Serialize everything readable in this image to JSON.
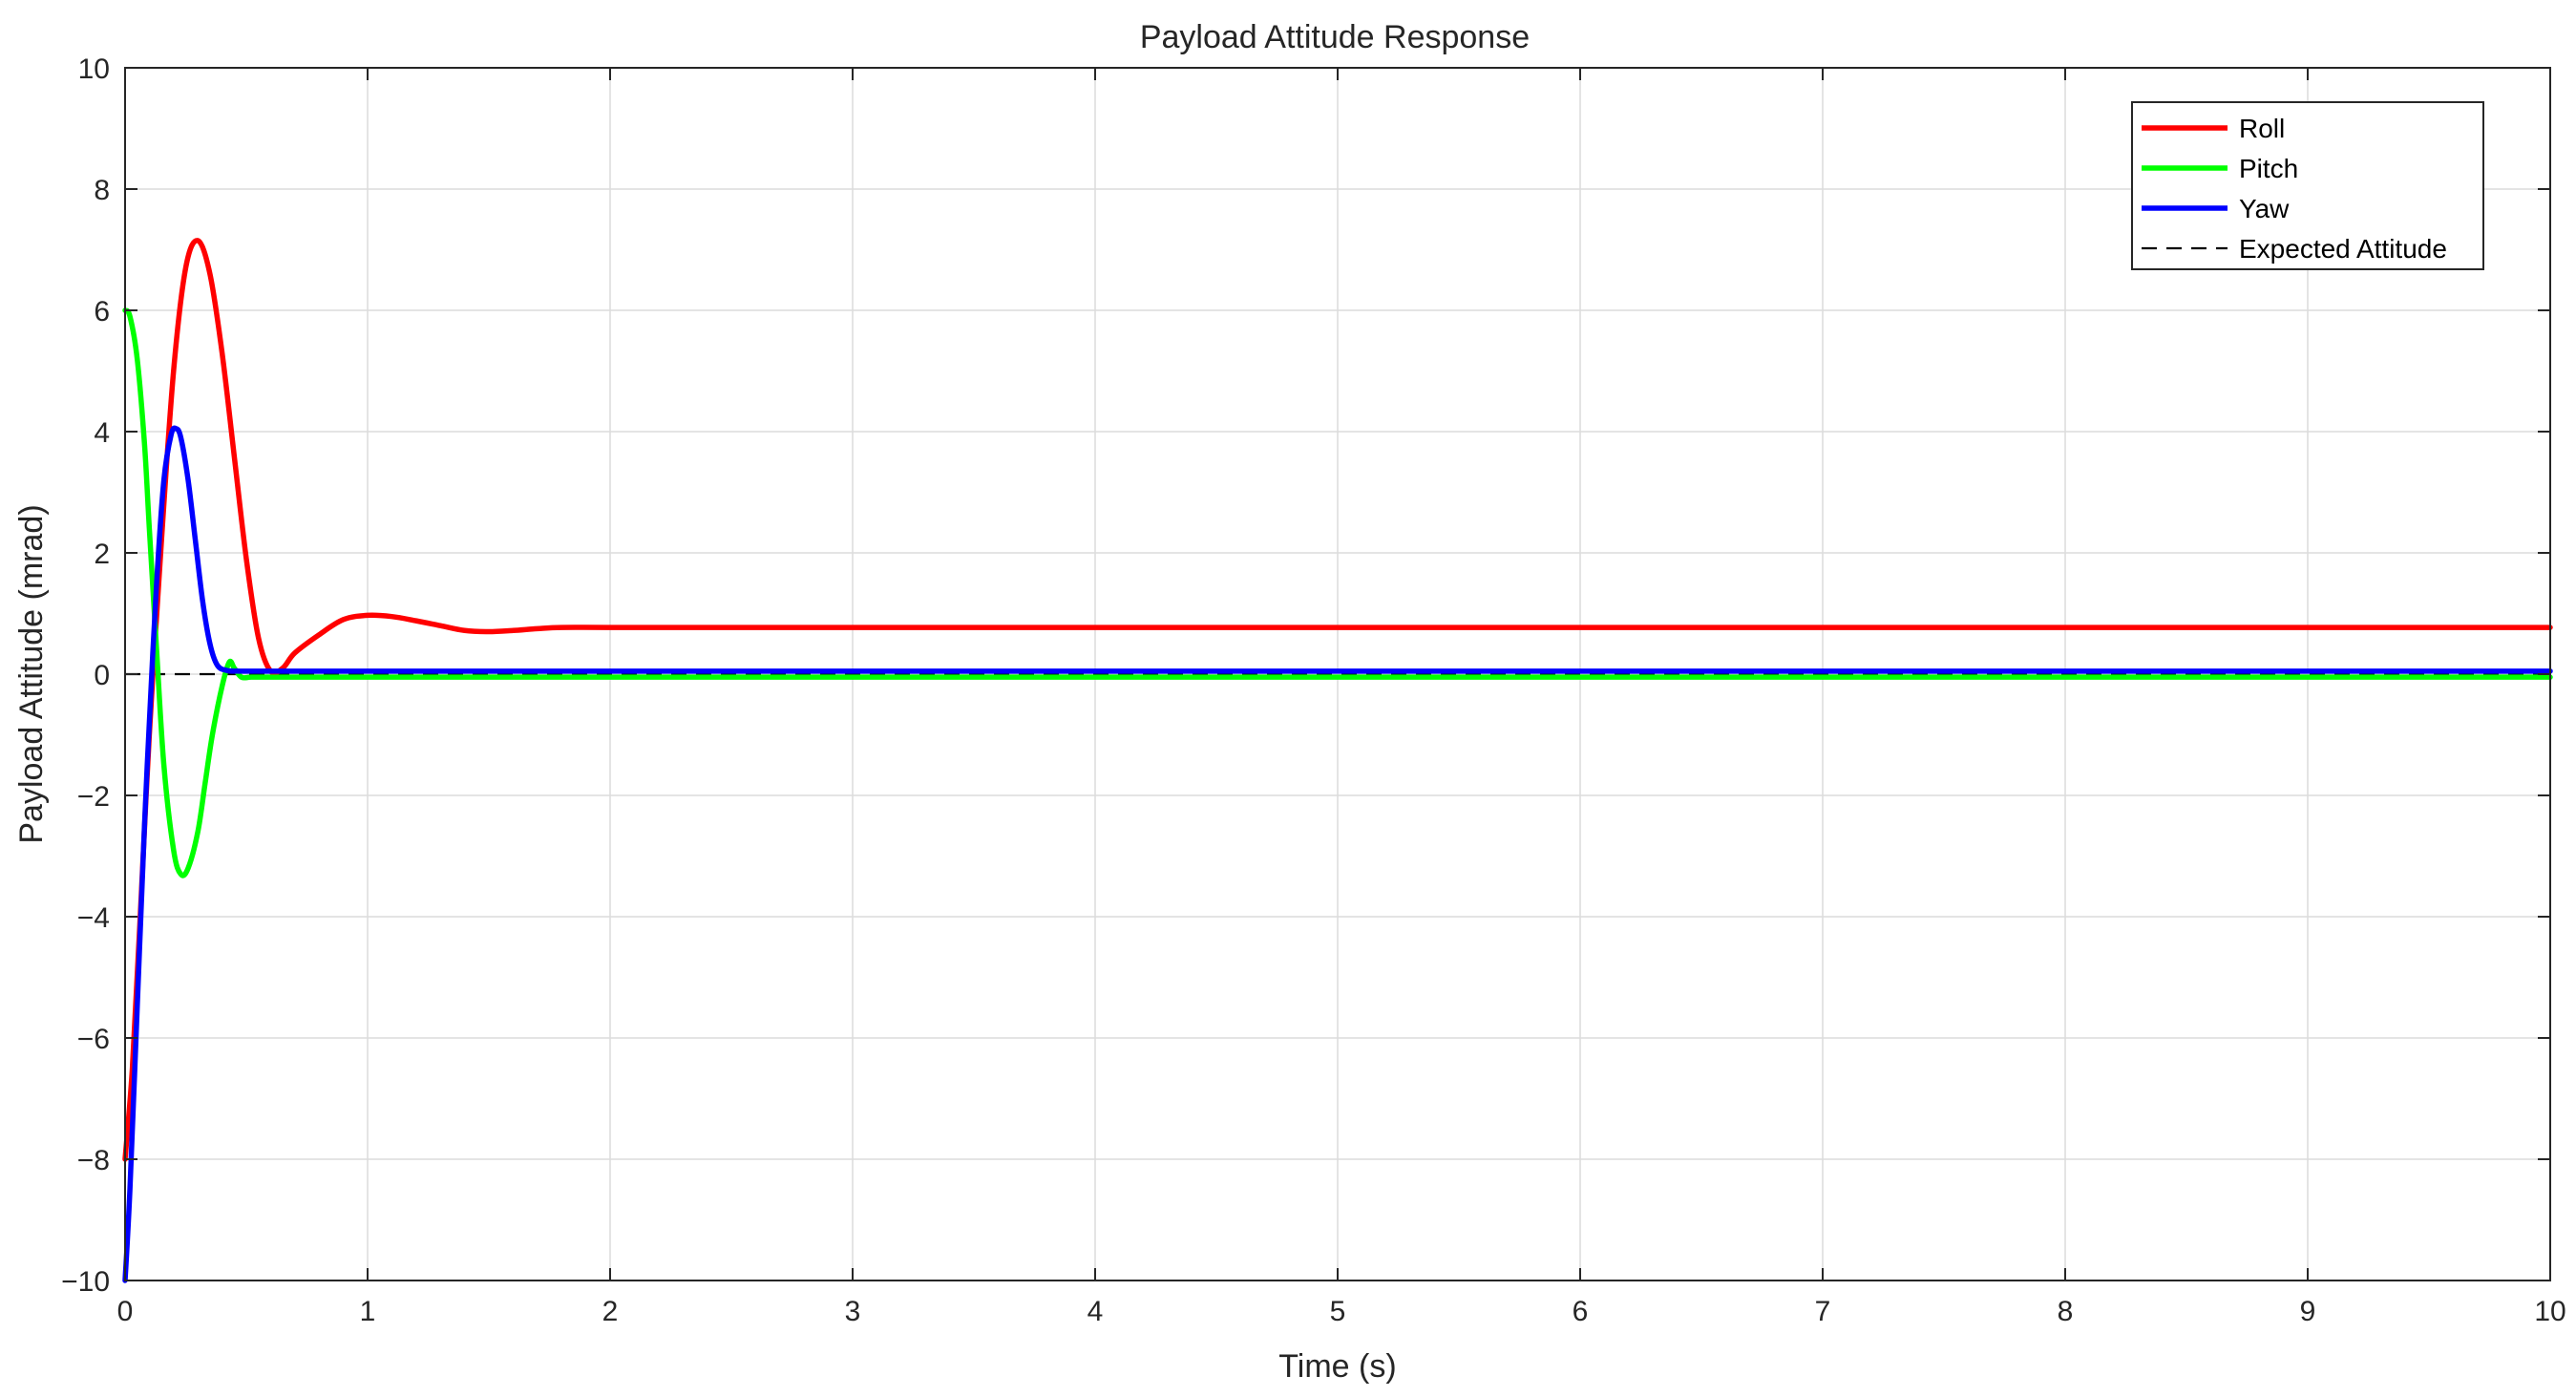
{
  "chart_data": {
    "type": "line",
    "title": "Payload Attitude Response",
    "xlabel": "Time (s)",
    "ylabel": "Payload Attitude (mrad)",
    "xlim": [
      0,
      10
    ],
    "ylim": [
      -10,
      10
    ],
    "xticks": [
      0,
      1,
      2,
      3,
      4,
      5,
      6,
      7,
      8,
      9,
      10
    ],
    "yticks": [
      -10,
      -8,
      -6,
      -4,
      -2,
      0,
      2,
      4,
      6,
      8,
      10
    ],
    "xtick_labels": [
      "0",
      "1",
      "2",
      "3",
      "4",
      "5",
      "6",
      "7",
      "8",
      "9",
      "10"
    ],
    "ytick_labels": [
      "−10",
      "−8",
      "−6",
      "−4",
      "−2",
      "0",
      "2",
      "4",
      "6",
      "8",
      "10"
    ],
    "grid": true,
    "legend_position": "top-right",
    "series": [
      {
        "name": "Roll",
        "color": "#ff0000",
        "style": "solid",
        "x": [
          0,
          0.03,
          0.06,
          0.1,
          0.15,
          0.2,
          0.25,
          0.3,
          0.35,
          0.4,
          0.45,
          0.5,
          0.55,
          0.6,
          0.65,
          0.7,
          0.8,
          0.9,
          1.0,
          1.1,
          1.2,
          1.3,
          1.4,
          1.5,
          1.6,
          1.7,
          1.8,
          2.0,
          2.5,
          3,
          4,
          5,
          6,
          7,
          8,
          9,
          10
        ],
        "y": [
          -8,
          -6.5,
          -4.2,
          -1.0,
          2.2,
          5.0,
          6.7,
          7.15,
          6.6,
          5.3,
          3.6,
          1.9,
          0.6,
          0.05,
          0.1,
          0.35,
          0.65,
          0.9,
          0.97,
          0.95,
          0.88,
          0.8,
          0.72,
          0.7,
          0.72,
          0.75,
          0.77,
          0.77,
          0.77,
          0.77,
          0.77,
          0.77,
          0.77,
          0.77,
          0.77,
          0.77,
          0.77
        ]
      },
      {
        "name": "Pitch",
        "color": "#00ff00",
        "style": "solid",
        "x": [
          0,
          0.02,
          0.05,
          0.08,
          0.1,
          0.13,
          0.16,
          0.2,
          0.23,
          0.26,
          0.3,
          0.33,
          0.36,
          0.4,
          0.43,
          0.45,
          0.48,
          0.52,
          0.6,
          0.8,
          1,
          2,
          3,
          4,
          5,
          6,
          7,
          8,
          9,
          10
        ],
        "y": [
          6.0,
          5.9,
          5.2,
          3.8,
          2.4,
          0.4,
          -1.5,
          -2.9,
          -3.3,
          -3.2,
          -2.6,
          -1.8,
          -1.0,
          -0.2,
          0.2,
          0.1,
          -0.05,
          -0.05,
          -0.05,
          -0.05,
          -0.05,
          -0.05,
          -0.05,
          -0.05,
          -0.05,
          -0.05,
          -0.05,
          -0.05,
          -0.05,
          -0.05
        ]
      },
      {
        "name": "Yaw",
        "color": "#0000ff",
        "style": "solid",
        "x": [
          0,
          0.02,
          0.05,
          0.08,
          0.1,
          0.13,
          0.16,
          0.19,
          0.21,
          0.23,
          0.26,
          0.29,
          0.32,
          0.35,
          0.38,
          0.42,
          0.47,
          0.55,
          0.7,
          1,
          2,
          3,
          4,
          5,
          6,
          7,
          8,
          9,
          10
        ],
        "y": [
          -10,
          -8.5,
          -5.5,
          -2.5,
          -0.8,
          1.5,
          3.2,
          3.95,
          4.05,
          3.9,
          3.2,
          2.2,
          1.2,
          0.5,
          0.15,
          0.06,
          0.05,
          0.05,
          0.05,
          0.05,
          0.05,
          0.05,
          0.05,
          0.05,
          0.05,
          0.05,
          0.05,
          0.05,
          0.05
        ]
      },
      {
        "name": "Expected Attitude",
        "color": "#000000",
        "style": "dashed",
        "x": [
          0,
          10
        ],
        "y": [
          0,
          0
        ]
      }
    ]
  }
}
